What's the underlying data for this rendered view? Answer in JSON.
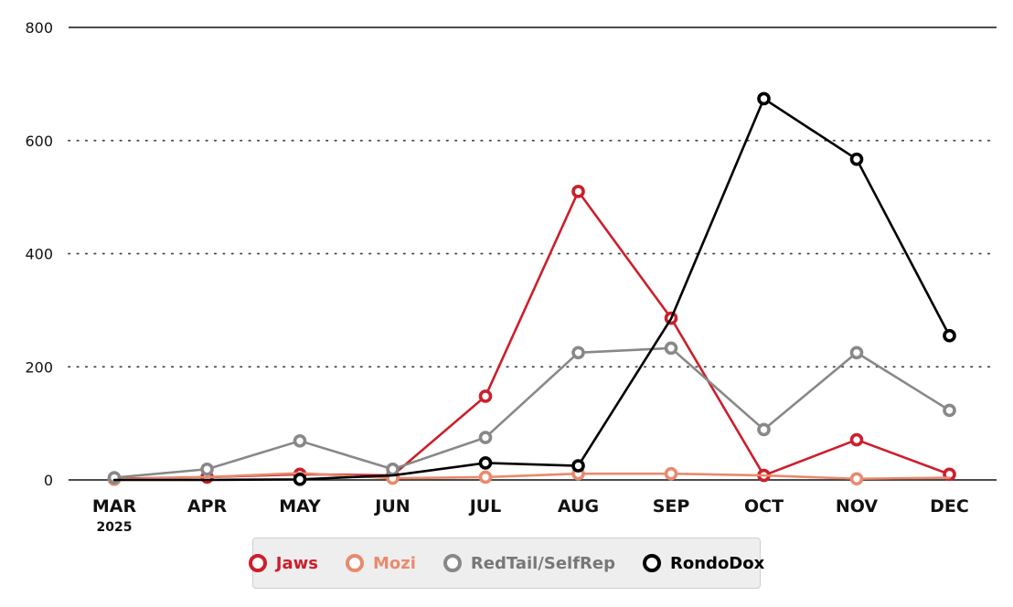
{
  "chart_data": {
    "type": "line",
    "categories": [
      "MAR",
      "APR",
      "MAY",
      "JUN",
      "JUL",
      "AUG",
      "SEP",
      "OCT",
      "NOV",
      "DEC"
    ],
    "category_sublabels": [
      "2025",
      "",
      "",
      "",
      "",
      "",
      "",
      "",
      "",
      ""
    ],
    "yticks": [
      "0",
      "200",
      "400",
      "600",
      "800"
    ],
    "ylim": [
      0,
      800
    ],
    "grid": "dotted horizontal",
    "legend_position": "bottom-center",
    "series": [
      {
        "name": "Jaws",
        "color": "#cc1f2b",
        "values": [
          2,
          5,
          10,
          8,
          148,
          510,
          286,
          8,
          71,
          10
        ],
        "markers": [
          true,
          true,
          true,
          true,
          true,
          true,
          true,
          true,
          true,
          true
        ]
      },
      {
        "name": "Mozi",
        "color": "#e88a6e",
        "values": [
          1,
          5,
          12,
          3,
          5,
          11,
          11,
          8,
          2,
          4
        ],
        "markers": [
          true,
          false,
          false,
          true,
          true,
          true,
          true,
          false,
          true,
          false
        ]
      },
      {
        "name": "RedTail/SelfRep",
        "color": "#888888",
        "values": [
          4,
          19,
          69,
          19,
          75,
          225,
          233,
          89,
          225,
          123
        ],
        "markers": [
          true,
          true,
          true,
          true,
          true,
          true,
          true,
          true,
          true,
          true
        ]
      },
      {
        "name": "RondoDox",
        "color": "#000000",
        "values": [
          0,
          0,
          1,
          8,
          30,
          25,
          285,
          674,
          567,
          255
        ],
        "markers": [
          false,
          false,
          true,
          false,
          true,
          true,
          false,
          true,
          true,
          true
        ]
      }
    ]
  }
}
